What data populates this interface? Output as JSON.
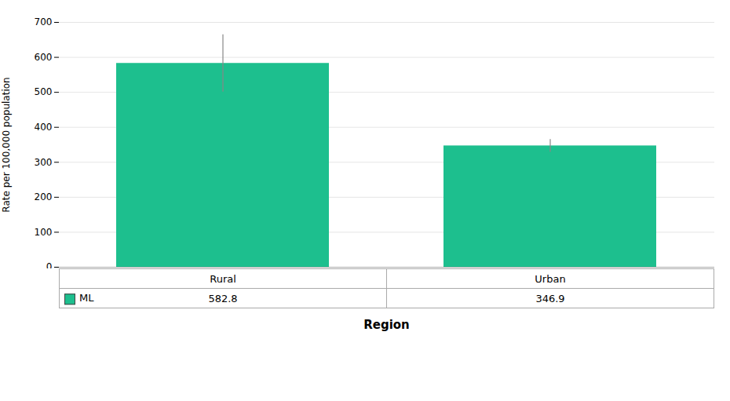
{
  "chart_data": {
    "type": "bar",
    "xlabel": "Region",
    "ylabel": "Rate per 100,000 population",
    "categories": [
      "Rural",
      "Urban"
    ],
    "series": [
      {
        "name": "ML",
        "color": "#1dbf8e",
        "values": [
          582.8,
          346.9
        ],
        "errors_upper": [
          82.0,
          18.0
        ],
        "errors_lower": [
          82.0,
          18.0
        ]
      }
    ],
    "ylim": [
      0,
      700
    ],
    "yticks": [
      0,
      100,
      200,
      300,
      400,
      500,
      600,
      700
    ],
    "grid": true,
    "data_labels": true
  }
}
